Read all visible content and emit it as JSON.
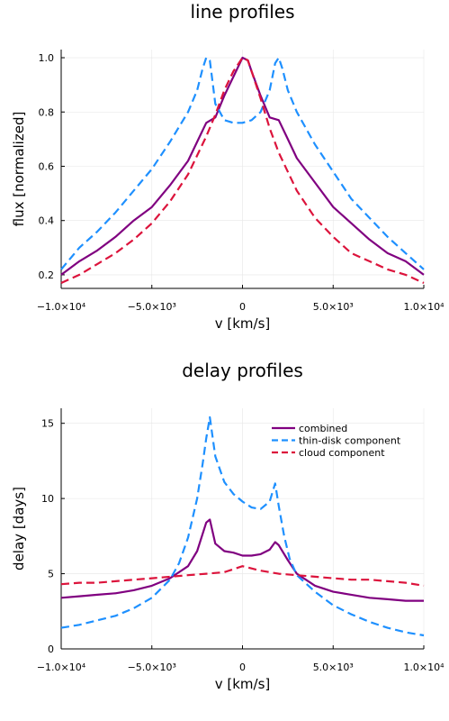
{
  "chart_data": [
    {
      "type": "line",
      "title": "line profiles",
      "xlabel": "v [km/s]",
      "ylabel": "flux [normalized]",
      "xlim": [
        -10000,
        10000
      ],
      "ylim": [
        0.15,
        1.03
      ],
      "grid": true,
      "x_ticks": [
        -10000,
        -5000,
        0,
        5000,
        10000
      ],
      "x_tick_labels": [
        "−1.0×10⁴",
        "−5.0×10³",
        "0",
        "5.0×10³",
        "1.0×10⁴"
      ],
      "y_ticks": [
        0.2,
        0.4,
        0.6,
        0.8,
        1.0
      ],
      "y_tick_labels": [
        "0.2",
        "0.4",
        "0.6",
        "0.8",
        "1.0"
      ],
      "series": [
        {
          "color": "#800080",
          "dash": "solid",
          "x": [
            -10000,
            -9000,
            -8000,
            -7000,
            -6000,
            -5000,
            -4000,
            -3000,
            -2500,
            -2000,
            -1500,
            -1000,
            -500,
            0,
            300,
            500,
            1000,
            1500,
            2000,
            2500,
            3000,
            4000,
            5000,
            6000,
            7000,
            8000,
            9000,
            10000
          ],
          "y": [
            0.2,
            0.25,
            0.29,
            0.34,
            0.4,
            0.45,
            0.53,
            0.62,
            0.69,
            0.76,
            0.78,
            0.86,
            0.93,
            1.0,
            0.99,
            0.95,
            0.86,
            0.78,
            0.77,
            0.7,
            0.63,
            0.54,
            0.45,
            0.39,
            0.33,
            0.28,
            0.25,
            0.2
          ]
        },
        {
          "color": "#1e90ff",
          "dash": "dashed",
          "x": [
            -10000,
            -9000,
            -8000,
            -7000,
            -6000,
            -5000,
            -4000,
            -3000,
            -2500,
            -2200,
            -2000,
            -1800,
            -1500,
            -1000,
            -500,
            0,
            500,
            1000,
            1500,
            1800,
            2000,
            2200,
            2500,
            3000,
            4000,
            5000,
            6000,
            7000,
            8000,
            9000,
            10000
          ],
          "y": [
            0.22,
            0.3,
            0.36,
            0.43,
            0.51,
            0.59,
            0.69,
            0.8,
            0.88,
            0.96,
            1.0,
            0.99,
            0.83,
            0.77,
            0.76,
            0.76,
            0.77,
            0.8,
            0.88,
            0.98,
            1.0,
            0.96,
            0.88,
            0.8,
            0.68,
            0.58,
            0.48,
            0.41,
            0.34,
            0.28,
            0.22
          ]
        },
        {
          "color": "#dc143c",
          "dash": "dashed",
          "x": [
            -10000,
            -9000,
            -8000,
            -7000,
            -6000,
            -5000,
            -4000,
            -3000,
            -2000,
            -1500,
            -1000,
            -500,
            0,
            300,
            500,
            1000,
            1500,
            2000,
            3000,
            4000,
            5000,
            6000,
            7000,
            8000,
            9000,
            10000
          ],
          "y": [
            0.17,
            0.2,
            0.24,
            0.28,
            0.33,
            0.39,
            0.47,
            0.57,
            0.71,
            0.79,
            0.88,
            0.95,
            1.0,
            0.99,
            0.95,
            0.85,
            0.74,
            0.65,
            0.51,
            0.41,
            0.34,
            0.28,
            0.25,
            0.22,
            0.2,
            0.17
          ]
        }
      ]
    },
    {
      "type": "line",
      "title": "delay profiles",
      "xlabel": "v [km/s]",
      "ylabel": "delay [days]",
      "xlim": [
        -10000,
        10000
      ],
      "ylim": [
        0,
        16
      ],
      "grid": true,
      "legend": "top-right",
      "x_ticks": [
        -10000,
        -5000,
        0,
        5000,
        10000
      ],
      "x_tick_labels": [
        "−1.0×10⁴",
        "−5.0×10³",
        "0",
        "5.0×10³",
        "1.0×10⁴"
      ],
      "y_ticks": [
        0,
        5,
        10,
        15
      ],
      "y_tick_labels": [
        "0",
        "5",
        "10",
        "15"
      ],
      "series": [
        {
          "name": "combined",
          "color": "#800080",
          "dash": "solid",
          "x": [
            -10000,
            -9000,
            -8000,
            -7000,
            -6000,
            -5000,
            -4000,
            -3000,
            -2500,
            -2000,
            -1800,
            -1500,
            -1000,
            -500,
            0,
            500,
            1000,
            1500,
            1800,
            2000,
            2500,
            3000,
            4000,
            5000,
            6000,
            7000,
            8000,
            9000,
            10000
          ],
          "y": [
            3.4,
            3.5,
            3.6,
            3.7,
            3.9,
            4.2,
            4.7,
            5.5,
            6.5,
            8.4,
            8.6,
            7.0,
            6.5,
            6.4,
            6.2,
            6.2,
            6.3,
            6.6,
            7.1,
            6.9,
            5.9,
            5.0,
            4.2,
            3.8,
            3.6,
            3.4,
            3.3,
            3.2,
            3.2
          ]
        },
        {
          "name": "thin-disk component",
          "color": "#1e90ff",
          "dash": "dashed",
          "x": [
            -10000,
            -9000,
            -8000,
            -7000,
            -6000,
            -5000,
            -4000,
            -3500,
            -3000,
            -2500,
            -2200,
            -2000,
            -1800,
            -1500,
            -1000,
            -500,
            0,
            500,
            1000,
            1500,
            1800,
            2000,
            2300,
            2600,
            3000,
            4000,
            5000,
            6000,
            7000,
            8000,
            9000,
            10000
          ],
          "y": [
            1.4,
            1.6,
            1.9,
            2.2,
            2.7,
            3.4,
            4.6,
            5.7,
            7.4,
            10.0,
            12.3,
            14.0,
            15.4,
            12.8,
            11.1,
            10.3,
            9.8,
            9.4,
            9.3,
            9.8,
            11.0,
            9.5,
            7.5,
            6.0,
            4.9,
            3.8,
            2.9,
            2.3,
            1.8,
            1.4,
            1.1,
            0.9
          ]
        },
        {
          "name": "cloud component",
          "color": "#dc143c",
          "dash": "dashed",
          "x": [
            -10000,
            -9000,
            -8000,
            -7000,
            -6000,
            -5000,
            -4000,
            -3000,
            -2000,
            -1000,
            0,
            1000,
            2000,
            3000,
            4000,
            5000,
            6000,
            7000,
            8000,
            9000,
            10000
          ],
          "y": [
            4.3,
            4.4,
            4.4,
            4.5,
            4.6,
            4.7,
            4.8,
            4.9,
            5.0,
            5.1,
            5.5,
            5.2,
            5.0,
            4.9,
            4.8,
            4.7,
            4.6,
            4.6,
            4.5,
            4.4,
            4.2
          ]
        }
      ]
    }
  ]
}
